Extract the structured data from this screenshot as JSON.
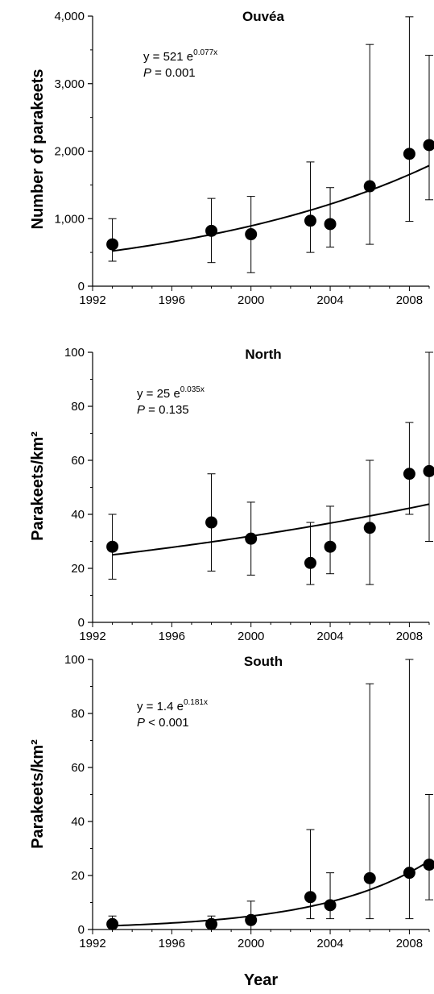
{
  "chart_data": [
    {
      "type": "scatter",
      "title": "Ouvéa",
      "xlabel": "",
      "ylabel": "Number of parakeets",
      "xlim": [
        1992,
        2009
      ],
      "ylim": [
        0,
        4000
      ],
      "x_ticks": [
        1992,
        1996,
        2000,
        2004,
        2008
      ],
      "x_tick_labels": [
        "1992",
        "1996",
        "2000",
        "2004",
        "2008"
      ],
      "y_ticks": [
        0,
        1000,
        2000,
        3000,
        4000
      ],
      "y_tick_labels": [
        "0",
        "1,000",
        "2,000",
        "3,000",
        "4,000"
      ],
      "equation": {
        "base": "y = 521 e",
        "exponent": "0.077x"
      },
      "p_value": {
        "label": "P",
        "text": " = 0.001"
      },
      "fit": {
        "model": "exponential",
        "a": 521,
        "b": 0.077,
        "x0": 1993
      },
      "series": [
        {
          "x": [
            1993,
            1998,
            2000,
            2003,
            2004,
            2006,
            2008,
            2009
          ],
          "values": [
            620,
            820,
            770,
            970,
            920,
            1480,
            1960,
            2090
          ],
          "err_low": [
            370,
            350,
            200,
            500,
            580,
            620,
            960,
            1280
          ],
          "err_high": [
            1000,
            1300,
            1330,
            1840,
            1460,
            3580,
            3990,
            3420
          ]
        }
      ]
    },
    {
      "type": "scatter",
      "title": "North",
      "xlabel": "",
      "ylabel": "Parakeets/km²",
      "xlim": [
        1992,
        2009
      ],
      "ylim": [
        0,
        100
      ],
      "x_ticks": [
        1992,
        1996,
        2000,
        2004,
        2008
      ],
      "x_tick_labels": [
        "1992",
        "1996",
        "2000",
        "2004",
        "2008"
      ],
      "y_ticks": [
        0,
        20,
        40,
        60,
        80,
        100
      ],
      "y_tick_labels": [
        "0",
        "20",
        "40",
        "60",
        "80",
        "100"
      ],
      "equation": {
        "base": "y = 25 e",
        "exponent": "0.035x"
      },
      "p_value": {
        "label": "P",
        "text": " = 0.135"
      },
      "fit": {
        "model": "exponential",
        "a": 25,
        "b": 0.035,
        "x0": 1993
      },
      "series": [
        {
          "x": [
            1993,
            1998,
            2000,
            2003,
            2004,
            2006,
            2008,
            2009
          ],
          "values": [
            28,
            37,
            31,
            22,
            28,
            35,
            55,
            56
          ],
          "err_low": [
            16,
            19,
            17.5,
            14,
            18,
            14,
            40,
            30
          ],
          "err_high": [
            40,
            55,
            44.5,
            37,
            43,
            60,
            74,
            100
          ]
        }
      ]
    },
    {
      "type": "scatter",
      "title": "South",
      "xlabel": "Year",
      "ylabel": "Parakeets/km²",
      "xlim": [
        1992,
        2009
      ],
      "ylim": [
        0,
        100
      ],
      "x_ticks": [
        1992,
        1996,
        2000,
        2004,
        2008
      ],
      "x_tick_labels": [
        "1992",
        "1996",
        "2000",
        "2004",
        "2008"
      ],
      "y_ticks": [
        0,
        20,
        40,
        60,
        80,
        100
      ],
      "y_tick_labels": [
        "0",
        "20",
        "40",
        "60",
        "80",
        "100"
      ],
      "equation": {
        "base": "y = 1.4 e",
        "exponent": "0.181x"
      },
      "p_value": {
        "label": "P",
        "text": " < 0.001"
      },
      "fit": {
        "model": "exponential",
        "a": 1.4,
        "b": 0.181,
        "x0": 1993
      },
      "series": [
        {
          "x": [
            1993,
            1998,
            2000,
            2003,
            2004,
            2006,
            2008,
            2009
          ],
          "values": [
            2,
            2,
            3.5,
            12,
            9,
            19,
            21,
            24
          ],
          "err_low": [
            0,
            0,
            0,
            4,
            4,
            4,
            4,
            11
          ],
          "err_high": [
            5,
            5,
            10.5,
            37,
            21,
            91,
            100,
            50
          ]
        }
      ]
    }
  ],
  "colors": {
    "marker": "#000000",
    "line": "#000000",
    "axis": "#000000"
  }
}
